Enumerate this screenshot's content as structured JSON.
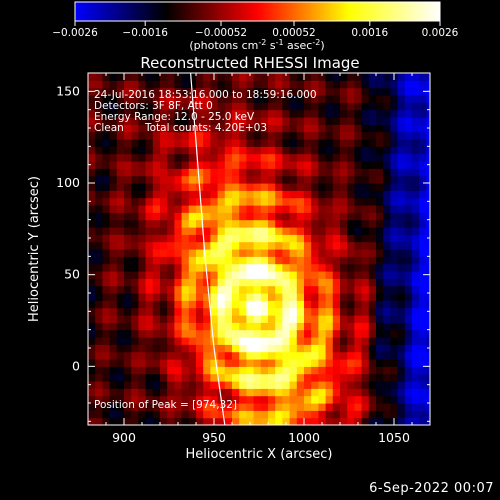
{
  "chart_data": {
    "type": "heatmap",
    "title": "Reconstructed RHESSI Image",
    "xlabel": "Heliocentric X (arcsec)",
    "ylabel": "Heliocentric Y (arcsec)",
    "xlim": [
      880,
      1070
    ],
    "ylim": [
      -32,
      160
    ],
    "x_ticks": [
      900,
      950,
      1000,
      1050
    ],
    "y_ticks": [
      0,
      50,
      100,
      150
    ],
    "colorbar": {
      "label": "(photons cm",
      "label_sup1": "-2",
      "label_mid": " s",
      "label_sup2": "-1",
      "label_mid2": " asec",
      "label_sup3": "-2",
      "label_end": ")",
      "range": [
        -0.0026,
        0.0026
      ],
      "ticks": [
        "-0.0026",
        "-0.0016",
        "-0.00052",
        "0.00052",
        "0.0016",
        "0.0026"
      ],
      "ticks_on_bar": [
        "−0.0026",
        "−0.0016",
        "−0.00052",
        "0.00052",
        "0.0016",
        "0.0026"
      ],
      "colormap": [
        "#0000ff",
        "#000000",
        "#ff0000",
        "#ffff00",
        "#ffffff"
      ]
    },
    "annotations": {
      "time": "24-Jul-2016 18:53:16.000 to 18:59:16.000",
      "detectors": "Detectors: 3F 8F, Att 0",
      "energy": "Energy Range: 12.0 - 25.0 keV",
      "clean": "Clean",
      "counts": "Total counts: 4.20E+03",
      "peak": "Position of Peak = [974,32]"
    },
    "peak": [
      974,
      32
    ],
    "source_sigma": [
      28,
      55
    ],
    "limb": [
      [
        937,
        160
      ],
      [
        941,
        110
      ],
      [
        945,
        60
      ],
      [
        950,
        10
      ],
      [
        956,
        -32
      ]
    ]
  },
  "footer_date": "6-Sep-2022 00:07"
}
